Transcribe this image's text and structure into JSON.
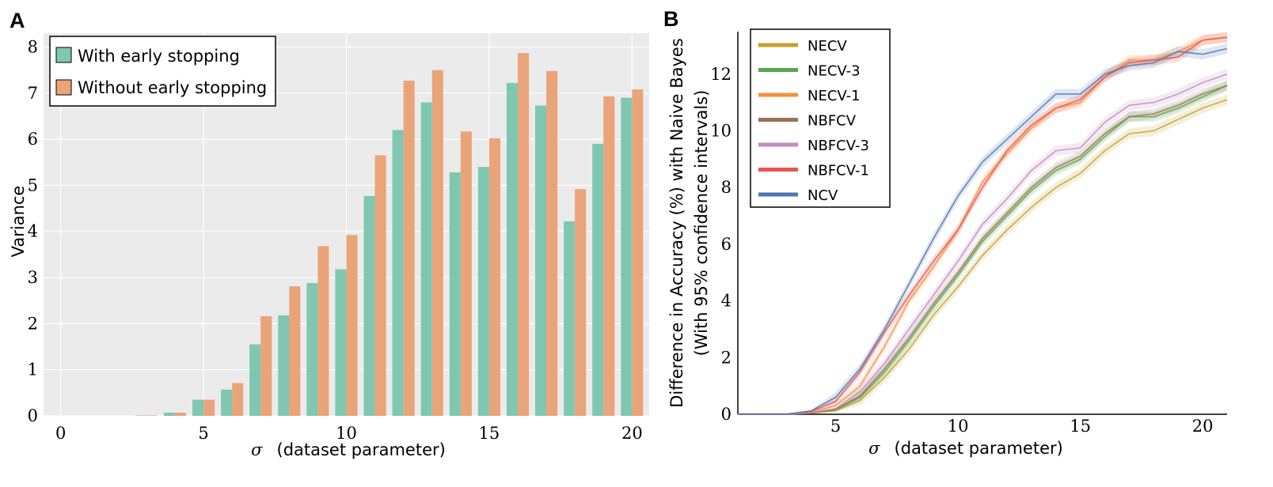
{
  "chart_data": [
    {
      "panel": "A",
      "type": "bar",
      "xlabel_symbol": "σ",
      "xlabel_text": "(dataset parameter)",
      "ylabel": "Variance",
      "xlim": [
        -0.6,
        20.6
      ],
      "ylim": [
        0,
        8.3
      ],
      "xticks": [
        0,
        5,
        10,
        15,
        20
      ],
      "yticks": [
        0,
        1,
        2,
        3,
        4,
        5,
        6,
        7,
        8
      ],
      "grid": true,
      "legend_position": "top-left",
      "categories": [
        0,
        1,
        2,
        3,
        4,
        5,
        6,
        7,
        8,
        9,
        10,
        11,
        12,
        13,
        14,
        15,
        16,
        17,
        18,
        19,
        20
      ],
      "series": [
        {
          "name": "With early stopping",
          "color": "#7fc7b1",
          "values": [
            0,
            0,
            0,
            0.01,
            0.07,
            0.35,
            0.57,
            1.55,
            2.18,
            2.88,
            3.18,
            4.77,
            6.2,
            6.8,
            5.28,
            5.4,
            7.22,
            6.73,
            4.22,
            5.9,
            6.9
          ]
        },
        {
          "name": "Without early stopping",
          "color": "#e9a479",
          "values": [
            0,
            0,
            0,
            0.01,
            0.07,
            0.35,
            0.71,
            2.16,
            2.81,
            3.68,
            3.92,
            5.65,
            7.27,
            7.5,
            6.17,
            6.02,
            7.87,
            7.48,
            4.92,
            6.93,
            7.08
          ]
        }
      ]
    },
    {
      "panel": "B",
      "type": "line",
      "xlabel_symbol": "σ",
      "xlabel_text": "(dataset parameter)",
      "ylabel": "Difference in Accuracy (%) with Naive Bayes",
      "ylabel2": "(With 95% confidence intervals)",
      "xlim": [
        1,
        21
      ],
      "ylim": [
        0,
        13.5
      ],
      "xticks": [
        5,
        10,
        15,
        20
      ],
      "yticks": [
        0,
        2,
        4,
        6,
        8,
        10,
        12
      ],
      "grid": false,
      "legend_position": "top-left",
      "x": [
        1,
        2,
        3,
        4,
        5,
        6,
        7,
        8,
        9,
        10,
        11,
        12,
        13,
        14,
        15,
        16,
        17,
        18,
        19,
        20,
        21
      ],
      "series": [
        {
          "name": "NECV",
          "color": "#c4a02c",
          "values": [
            0,
            0,
            0,
            0.05,
            0.12,
            0.5,
            1.3,
            2.3,
            3.5,
            4.5,
            5.6,
            6.5,
            7.3,
            8.0,
            8.5,
            9.3,
            9.9,
            10.0,
            10.4,
            10.8,
            11.1
          ]
        },
        {
          "name": "NECV-3",
          "color": "#55a84a",
          "values": [
            0,
            0,
            0,
            0.05,
            0.15,
            0.6,
            1.5,
            2.6,
            3.8,
            4.9,
            6.1,
            7.0,
            7.9,
            8.6,
            9.0,
            9.8,
            10.5,
            10.5,
            10.8,
            11.2,
            11.6
          ]
        },
        {
          "name": "NECV-1",
          "color": "#f5903e",
          "values": [
            0,
            0,
            0,
            0.08,
            0.3,
            1.0,
            2.4,
            4.0,
            5.2,
            6.5,
            8.2,
            9.2,
            10.1,
            10.8,
            11.0,
            11.9,
            12.5,
            12.5,
            12.8,
            13.2,
            13.3
          ]
        },
        {
          "name": "NBFCV",
          "color": "#9b7259",
          "values": [
            0,
            0,
            0,
            0.05,
            0.18,
            0.65,
            1.6,
            2.7,
            3.9,
            5.0,
            6.2,
            7.1,
            8.0,
            8.7,
            9.1,
            9.9,
            10.5,
            10.6,
            10.9,
            11.3,
            11.6
          ]
        },
        {
          "name": "NBFCV-3",
          "color": "#c38bc0",
          "values": [
            0,
            0,
            0,
            0.05,
            0.2,
            0.8,
            1.8,
            3.0,
            4.2,
            5.4,
            6.7,
            7.6,
            8.6,
            9.3,
            9.4,
            10.3,
            10.9,
            11.0,
            11.3,
            11.7,
            12.0
          ]
        },
        {
          "name": "NBFCV-1",
          "color": "#e9574f",
          "values": [
            0,
            0,
            0,
            0.1,
            0.45,
            1.5,
            2.9,
            4.2,
            5.4,
            6.5,
            8.0,
            9.3,
            10.2,
            10.8,
            11.1,
            11.9,
            12.4,
            12.5,
            12.6,
            13.2,
            13.3
          ]
        },
        {
          "name": "NCV",
          "color": "#4d77b3",
          "values": [
            0,
            0,
            0,
            0.12,
            0.6,
            1.6,
            3.0,
            4.6,
            6.2,
            7.7,
            8.9,
            9.7,
            10.5,
            11.3,
            11.3,
            12.0,
            12.3,
            12.4,
            12.8,
            12.7,
            12.9
          ]
        }
      ]
    }
  ]
}
